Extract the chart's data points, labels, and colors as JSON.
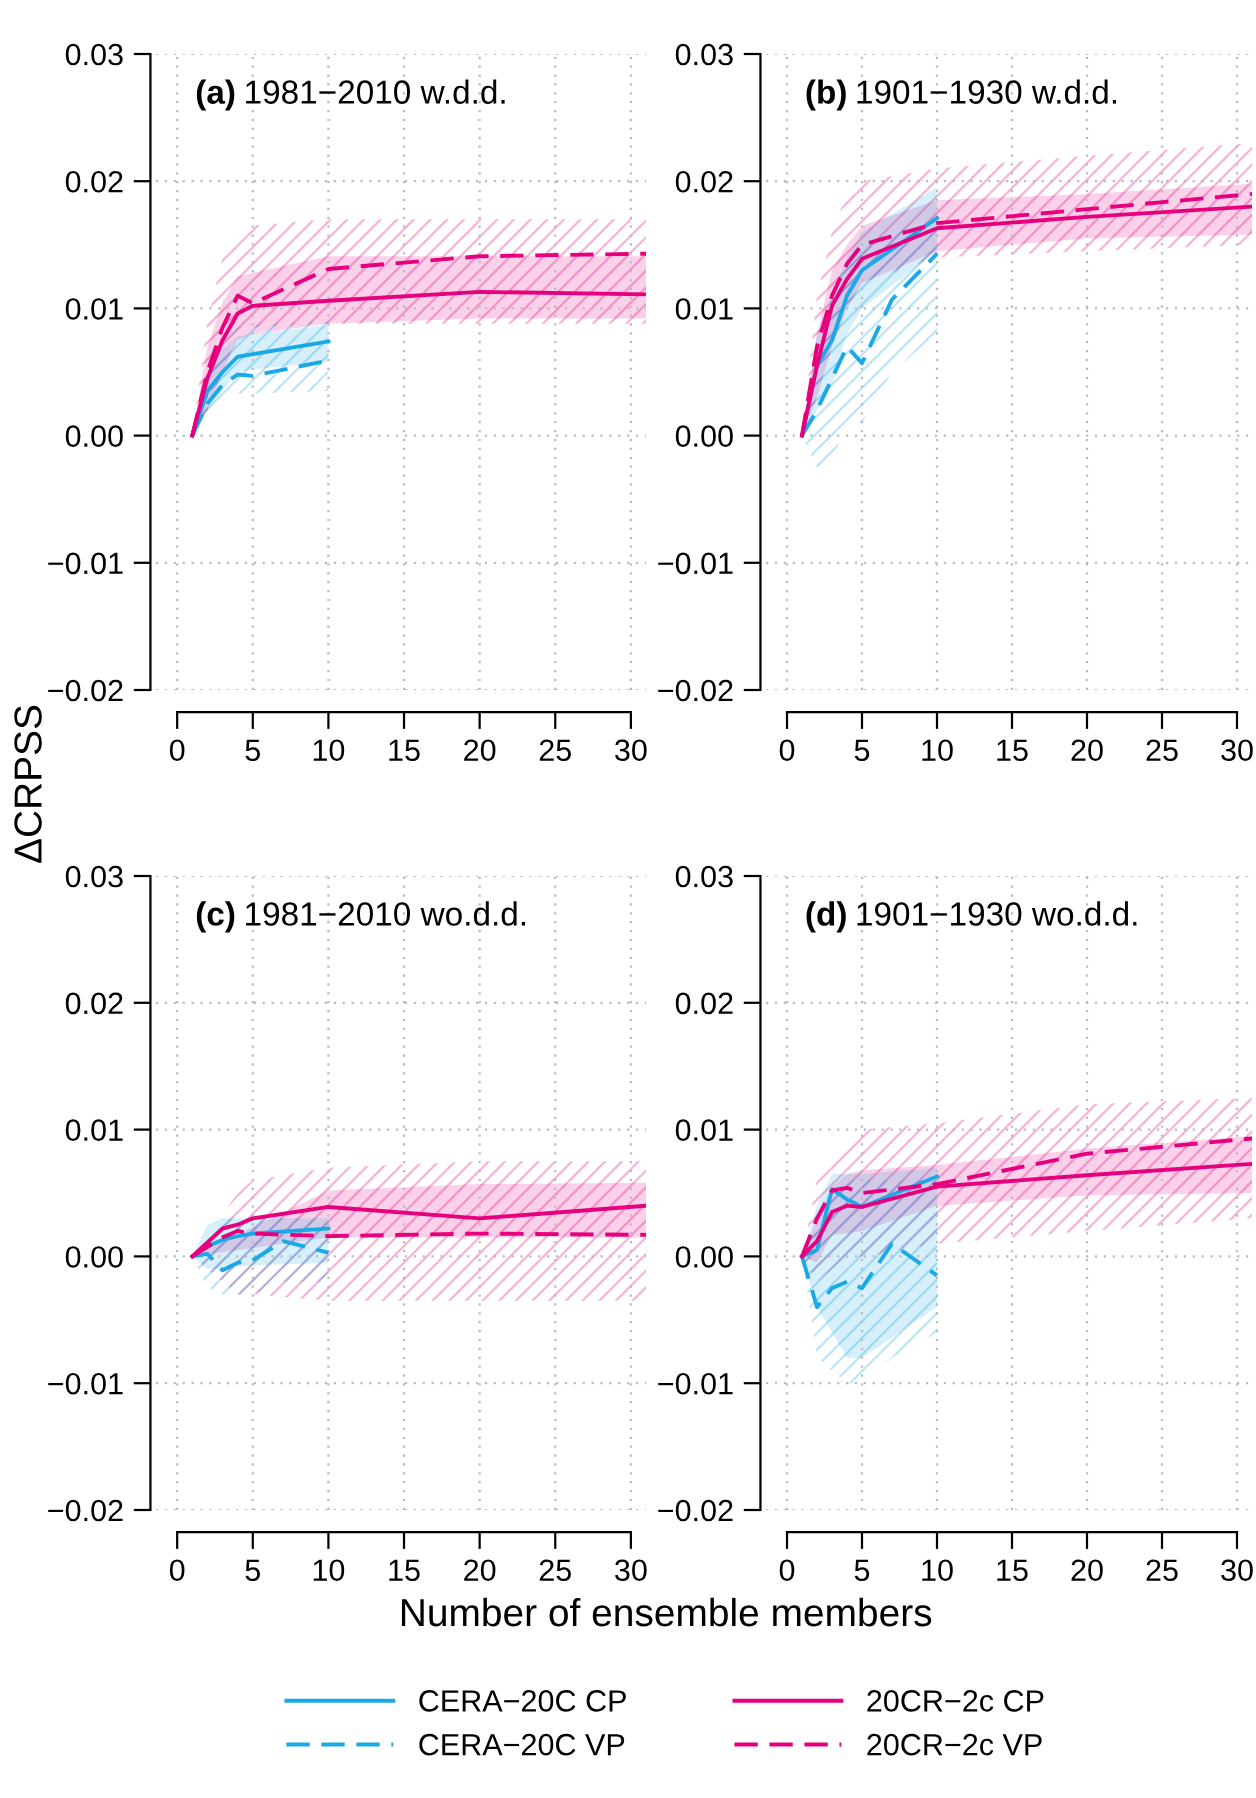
{
  "chart_data": [
    {
      "type": "line",
      "title": "(a) 1981−2010 w.d.d.",
      "ylabel": "ΔCRPSS",
      "xlim": [
        -1.4,
        31
      ],
      "ylim": [
        -0.02,
        0.03
      ],
      "xticks": [
        0,
        5,
        10,
        15,
        20,
        25,
        30
      ],
      "yticks": [
        {
          "value": -0.02,
          "label": "−0.02"
        },
        {
          "value": -0.01,
          "label": "−0.01"
        },
        {
          "value": 0,
          "label": "0.00"
        },
        {
          "value": 0.01,
          "label": "0.01"
        },
        {
          "value": 0.02,
          "label": "0.02"
        },
        {
          "value": 0.03,
          "label": "0.03"
        }
      ],
      "grid": true,
      "legend": "bottom",
      "series": [
        {
          "name": "CERA−20C CP",
          "color": "#1ba8e6",
          "line_style": "solid",
          "x": [
            1,
            2,
            3,
            4,
            5,
            10
          ],
          "values": [
            0,
            0.0035,
            0.005,
            0.0062,
            0.0064,
            0.0074
          ],
          "lower": [
            0,
            0.002,
            0.0035,
            0.005,
            0.0052,
            0.0058
          ],
          "upper": [
            0,
            0.005,
            0.0068,
            0.0078,
            0.008,
            0.0087
          ]
        },
        {
          "name": "CERA−20C VP",
          "color": "#1ba8e6",
          "line_style": "dashed",
          "x": [
            1,
            2,
            3,
            4,
            5,
            10
          ],
          "values": [
            0,
            0.0025,
            0.004,
            0.0048,
            0.0047,
            0.0059
          ],
          "lower": [
            0,
            0.001,
            0.0025,
            0.0033,
            0.0033,
            0.0035
          ],
          "upper": [
            0,
            0.005,
            0.007,
            0.0085,
            0.0087,
            0.009
          ]
        },
        {
          "name": "20CR−2c CP",
          "color": "#e6007e",
          "line_style": "solid",
          "x": [
            1,
            2,
            3,
            4,
            5,
            10,
            20,
            31
          ],
          "values": [
            0,
            0.0045,
            0.0075,
            0.0096,
            0.0102,
            0.0106,
            0.0113,
            0.0111
          ],
          "lower": [
            0,
            0.002,
            0.005,
            0.0075,
            0.008,
            0.0088,
            0.0092,
            0.0092
          ],
          "upper": [
            0,
            0.007,
            0.0105,
            0.0125,
            0.0128,
            0.0141,
            0.0141,
            0.0141
          ]
        },
        {
          "name": "20CR−2c VP",
          "color": "#e6007e",
          "line_style": "dashed",
          "x": [
            1,
            2,
            3,
            4,
            5,
            10,
            20,
            31
          ],
          "values": [
            0,
            0.005,
            0.0085,
            0.011,
            0.0104,
            0.0131,
            0.0141,
            0.0143
          ],
          "lower": [
            0,
            0.002,
            0.005,
            0.008,
            0.0085,
            0.0088,
            0.0088,
            0.0088
          ],
          "upper": [
            0,
            0.009,
            0.014,
            0.016,
            0.0165,
            0.017,
            0.017,
            0.017
          ]
        }
      ]
    },
    {
      "type": "line",
      "title": "(b) 1901−1930 w.d.d.",
      "xlim": [
        -1.4,
        31
      ],
      "ylim": [
        -0.02,
        0.03
      ],
      "xticks": [
        0,
        5,
        10,
        15,
        20,
        25,
        30
      ],
      "yticks": [
        {
          "value": -0.02,
          "label": "−0.02"
        },
        {
          "value": -0.01,
          "label": "−0.01"
        },
        {
          "value": 0,
          "label": "0.00"
        },
        {
          "value": 0.01,
          "label": "0.01"
        },
        {
          "value": 0.02,
          "label": "0.02"
        },
        {
          "value": 0.03,
          "label": "0.03"
        }
      ],
      "grid": true,
      "series": [
        {
          "color": "#1ba8e6",
          "line_style": "solid",
          "x": [
            1,
            2,
            3,
            4,
            5,
            10
          ],
          "values": [
            0,
            0.0055,
            0.0075,
            0.011,
            0.013,
            0.0171
          ],
          "lower": [
            0,
            0.002,
            0.004,
            0.008,
            0.01,
            0.0145
          ],
          "upper": [
            0,
            0.008,
            0.011,
            0.014,
            0.016,
            0.0195
          ]
        },
        {
          "color": "#1ba8e6",
          "line_style": "dashed",
          "x": [
            1,
            2,
            3,
            4,
            5,
            7,
            10
          ],
          "values": [
            0,
            0.002,
            0.0045,
            0.007,
            0.0057,
            0.0107,
            0.0143
          ],
          "lower": [
            0,
            -0.0025,
            -0.002,
            0.001,
            0.001,
            0.005,
            0.008
          ],
          "upper": [
            0,
            0.006,
            0.011,
            0.014,
            0.015,
            0.016,
            0.017
          ]
        },
        {
          "color": "#e6007e",
          "line_style": "solid",
          "x": [
            1,
            2,
            3,
            4,
            5,
            10,
            20,
            31
          ],
          "values": [
            0,
            0.0055,
            0.0102,
            0.0123,
            0.0139,
            0.0163,
            0.0172,
            0.018
          ],
          "lower": [
            0,
            0.003,
            0.007,
            0.01,
            0.012,
            0.0145,
            0.0155,
            0.0158
          ],
          "upper": [
            0,
            0.008,
            0.013,
            0.015,
            0.0165,
            0.0185,
            0.019,
            0.0198
          ]
        },
        {
          "color": "#e6007e",
          "line_style": "dashed",
          "x": [
            1,
            2,
            3,
            4,
            5,
            10,
            20,
            31
          ],
          "values": [
            0,
            0.007,
            0.011,
            0.0135,
            0.015,
            0.0167,
            0.0178,
            0.019
          ],
          "lower": [
            0,
            0.003,
            0.007,
            0.01,
            0.012,
            0.014,
            0.0145,
            0.015
          ],
          "upper": [
            0,
            0.011,
            0.016,
            0.019,
            0.02,
            0.021,
            0.022,
            0.023
          ]
        }
      ]
    },
    {
      "type": "line",
      "title": "(c) 1981−2010 wo.d.d.",
      "xlabel": "Number of ensemble members",
      "xlim": [
        -1.4,
        31
      ],
      "ylim": [
        -0.02,
        0.03
      ],
      "xticks": [
        0,
        5,
        10,
        15,
        20,
        25,
        30
      ],
      "yticks": [
        {
          "value": -0.02,
          "label": "−0.02"
        },
        {
          "value": -0.01,
          "label": "−0.01"
        },
        {
          "value": 0,
          "label": "0.00"
        },
        {
          "value": 0.01,
          "label": "0.01"
        },
        {
          "value": 0.02,
          "label": "0.02"
        },
        {
          "value": 0.03,
          "label": "0.03"
        }
      ],
      "grid": true,
      "series": [
        {
          "color": "#1ba8e6",
          "line_style": "solid",
          "x": [
            1,
            2,
            3,
            4,
            5,
            10
          ],
          "values": [
            0,
            0.0008,
            0.0013,
            0.0016,
            0.0018,
            0.0022
          ],
          "lower": [
            0,
            -0.001,
            -0.001,
            -0.0008,
            -0.0007,
            -0.0005
          ],
          "upper": [
            0,
            0.0025,
            0.003,
            0.003,
            0.003,
            0.003
          ]
        },
        {
          "color": "#1ba8e6",
          "line_style": "dashed",
          "x": [
            1,
            2,
            3,
            4,
            5,
            7,
            10
          ],
          "values": [
            0,
            0.0002,
            -0.0011,
            -0.0005,
            -0.0003,
            0.0012,
            0.0003
          ],
          "lower": [
            0,
            -0.0025,
            -0.003,
            -0.003,
            -0.003,
            -0.002,
            -0.002
          ],
          "upper": [
            0,
            0.002,
            0.003,
            0.003,
            0.003,
            0.003,
            0.003
          ]
        },
        {
          "color": "#e6007e",
          "line_style": "solid",
          "x": [
            1,
            3,
            4,
            5,
            10,
            20,
            31
          ],
          "values": [
            0,
            0.0022,
            0.0025,
            0.003,
            0.0039,
            0.003,
            0.004
          ],
          "lower": [
            0,
            null,
            null,
            null,
            0.0015,
            0.0015,
            0.0015
          ],
          "upper": [
            0,
            null,
            null,
            null,
            0.0052,
            0.0057,
            0.0058
          ]
        },
        {
          "color": "#e6007e",
          "line_style": "dashed",
          "x": [
            1,
            3,
            4,
            5,
            10,
            20,
            31
          ],
          "values": [
            0,
            0.0015,
            0.002,
            0.0018,
            0.0016,
            0.0018,
            0.0017
          ],
          "lower": [
            0,
            null,
            -0.003,
            -0.003,
            -0.0035,
            -0.0035,
            -0.0035
          ],
          "upper": [
            0,
            null,
            0.005,
            0.006,
            0.007,
            0.0075,
            0.0075
          ]
        }
      ]
    },
    {
      "type": "line",
      "title": "(d) 1901−1930 wo.d.d.",
      "xlim": [
        -1.4,
        31
      ],
      "ylim": [
        -0.02,
        0.03
      ],
      "xticks": [
        0,
        5,
        10,
        15,
        20,
        25,
        30
      ],
      "yticks": [
        {
          "value": -0.02,
          "label": "−0.02"
        },
        {
          "value": -0.01,
          "label": "−0.01"
        },
        {
          "value": 0,
          "label": "0.00"
        },
        {
          "value": 0.01,
          "label": "0.01"
        },
        {
          "value": 0.02,
          "label": "0.02"
        },
        {
          "value": 0.03,
          "label": "0.03"
        }
      ],
      "grid": true,
      "series": [
        {
          "color": "#1ba8e6",
          "line_style": "solid",
          "x": [
            1,
            2,
            3,
            4,
            5,
            10
          ],
          "values": [
            0,
            0.0005,
            0.0053,
            0.0045,
            0.0039,
            0.0063
          ],
          "lower": [
            0,
            -0.004,
            -0.006,
            -0.008,
            -0.008,
            -0.004
          ],
          "upper": [
            0,
            0.004,
            0.0065,
            0.0065,
            0.0065,
            0.007
          ]
        },
        {
          "color": "#1ba8e6",
          "line_style": "dashed",
          "x": [
            1,
            2,
            3,
            4,
            5,
            7,
            10
          ],
          "values": [
            0,
            -0.004,
            -0.0025,
            -0.002,
            -0.0025,
            0.001,
            -0.0015
          ],
          "lower": [
            0,
            -0.008,
            -0.009,
            -0.01,
            -0.01,
            -0.008,
            -0.006
          ],
          "upper": [
            0,
            0.003,
            0.005,
            0.006,
            0.006,
            0.006,
            0.006
          ]
        },
        {
          "color": "#e6007e",
          "line_style": "solid",
          "x": [
            1,
            2,
            3,
            4,
            5,
            10,
            20,
            31
          ],
          "values": [
            0,
            0.0012,
            0.0035,
            0.004,
            0.0039,
            0.0055,
            0.0064,
            0.0073
          ],
          "lower": [
            0,
            -0.0005,
            0.0017,
            0.0018,
            0.002,
            0.004,
            0.0048,
            0.005
          ],
          "upper": [
            0,
            0.003,
            0.0055,
            0.0065,
            0.0068,
            0.0072,
            0.0085,
            0.0095
          ]
        },
        {
          "color": "#e6007e",
          "line_style": "dashed",
          "x": [
            1,
            2,
            3,
            4,
            5,
            10,
            20,
            31
          ],
          "values": [
            0,
            0.003,
            0.0052,
            0.0054,
            0.005,
            0.0057,
            0.0081,
            0.0093
          ],
          "lower": [
            0,
            -0.002,
            -0.001,
            0,
            0,
            0.001,
            0.002,
            0.003
          ],
          "upper": [
            0,
            0.006,
            0.008,
            0.009,
            0.01,
            0.0105,
            0.012,
            0.0125
          ]
        }
      ]
    }
  ]
}
